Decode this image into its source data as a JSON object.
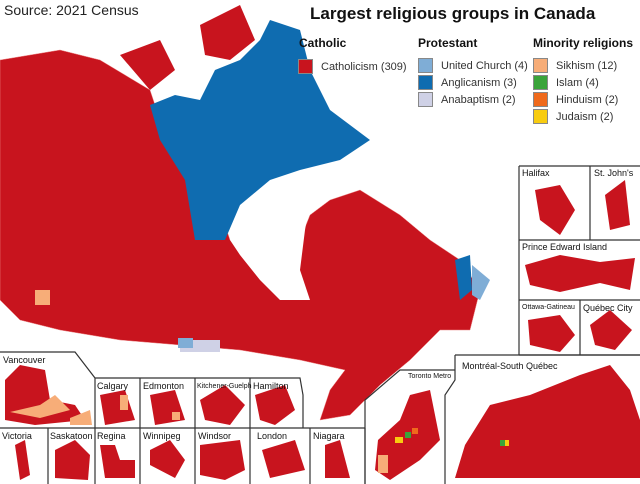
{
  "source": "Source: 2021 Census",
  "title": "Largest religious groups in Canada",
  "legend": {
    "catholic": {
      "heading": "Catholic",
      "items": [
        {
          "label": "Catholicism (309)",
          "color": "#c8141e"
        }
      ]
    },
    "protestant": {
      "heading": "Protestant",
      "items": [
        {
          "label": "United Church (4)",
          "color": "#7fadd6"
        },
        {
          "label": "Anglicanism (3)",
          "color": "#0f6cb0"
        },
        {
          "label": "Anabaptism (2)",
          "color": "#cfd1e6"
        }
      ]
    },
    "minority": {
      "heading": "Minority religions",
      "items": [
        {
          "label": "Sikhism (12)",
          "color": "#f7ad78"
        },
        {
          "label": "Islam (4)",
          "color": "#3aa43a"
        },
        {
          "label": "Hinduism (2)",
          "color": "#ef6a1c"
        },
        {
          "label": "Judaism (2)",
          "color": "#f8cc10"
        }
      ]
    }
  },
  "insets": [
    "Halifax",
    "St. John's",
    "Prince Edward Island",
    "Ottawa-Gatineau",
    "Québec City",
    "Montréal-South Québec",
    "Toronto Metro",
    "Vancouver",
    "Calgary",
    "Edmonton",
    "Kitchener-Guelph",
    "Hamilton",
    "Victoria",
    "Saskatoon",
    "Regina",
    "Winnipeg",
    "Windsor",
    "London",
    "Niagara"
  ]
}
